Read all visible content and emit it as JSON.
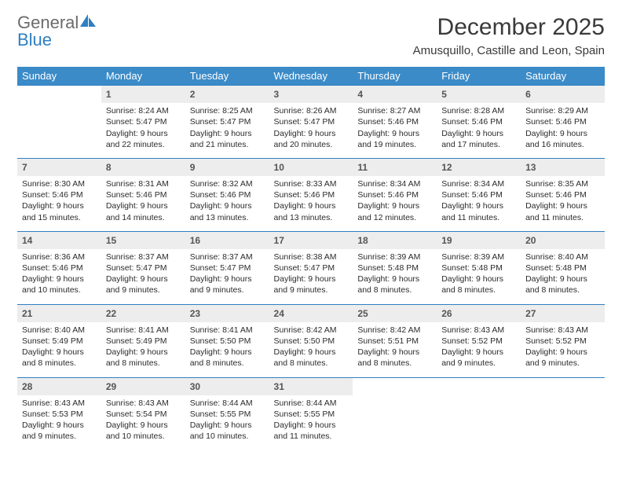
{
  "brand": {
    "name_gray": "General",
    "name_blue": "Blue"
  },
  "header": {
    "title": "December 2025",
    "location": "Amusquillo, Castille and Leon, Spain"
  },
  "colors": {
    "header_bg": "#3b8bc8",
    "header_text": "#ffffff",
    "daynum_bg": "#ededed",
    "rule": "#2f7fc2",
    "body_text": "#2b2b2b",
    "logo_gray": "#6b6b6b",
    "logo_blue": "#2f7fc2"
  },
  "typography": {
    "title_fontsize": 30,
    "location_fontsize": 15,
    "weekday_fontsize": 13,
    "daynum_fontsize": 12,
    "detail_fontsize": 10.5
  },
  "weekdays": [
    "Sunday",
    "Monday",
    "Tuesday",
    "Wednesday",
    "Thursday",
    "Friday",
    "Saturday"
  ],
  "weeks": [
    [
      null,
      {
        "n": "1",
        "sr": "Sunrise: 8:24 AM",
        "ss": "Sunset: 5:47 PM",
        "dl": "Daylight: 9 hours and 22 minutes."
      },
      {
        "n": "2",
        "sr": "Sunrise: 8:25 AM",
        "ss": "Sunset: 5:47 PM",
        "dl": "Daylight: 9 hours and 21 minutes."
      },
      {
        "n": "3",
        "sr": "Sunrise: 8:26 AM",
        "ss": "Sunset: 5:47 PM",
        "dl": "Daylight: 9 hours and 20 minutes."
      },
      {
        "n": "4",
        "sr": "Sunrise: 8:27 AM",
        "ss": "Sunset: 5:46 PM",
        "dl": "Daylight: 9 hours and 19 minutes."
      },
      {
        "n": "5",
        "sr": "Sunrise: 8:28 AM",
        "ss": "Sunset: 5:46 PM",
        "dl": "Daylight: 9 hours and 17 minutes."
      },
      {
        "n": "6",
        "sr": "Sunrise: 8:29 AM",
        "ss": "Sunset: 5:46 PM",
        "dl": "Daylight: 9 hours and 16 minutes."
      }
    ],
    [
      {
        "n": "7",
        "sr": "Sunrise: 8:30 AM",
        "ss": "Sunset: 5:46 PM",
        "dl": "Daylight: 9 hours and 15 minutes."
      },
      {
        "n": "8",
        "sr": "Sunrise: 8:31 AM",
        "ss": "Sunset: 5:46 PM",
        "dl": "Daylight: 9 hours and 14 minutes."
      },
      {
        "n": "9",
        "sr": "Sunrise: 8:32 AM",
        "ss": "Sunset: 5:46 PM",
        "dl": "Daylight: 9 hours and 13 minutes."
      },
      {
        "n": "10",
        "sr": "Sunrise: 8:33 AM",
        "ss": "Sunset: 5:46 PM",
        "dl": "Daylight: 9 hours and 13 minutes."
      },
      {
        "n": "11",
        "sr": "Sunrise: 8:34 AM",
        "ss": "Sunset: 5:46 PM",
        "dl": "Daylight: 9 hours and 12 minutes."
      },
      {
        "n": "12",
        "sr": "Sunrise: 8:34 AM",
        "ss": "Sunset: 5:46 PM",
        "dl": "Daylight: 9 hours and 11 minutes."
      },
      {
        "n": "13",
        "sr": "Sunrise: 8:35 AM",
        "ss": "Sunset: 5:46 PM",
        "dl": "Daylight: 9 hours and 11 minutes."
      }
    ],
    [
      {
        "n": "14",
        "sr": "Sunrise: 8:36 AM",
        "ss": "Sunset: 5:46 PM",
        "dl": "Daylight: 9 hours and 10 minutes."
      },
      {
        "n": "15",
        "sr": "Sunrise: 8:37 AM",
        "ss": "Sunset: 5:47 PM",
        "dl": "Daylight: 9 hours and 9 minutes."
      },
      {
        "n": "16",
        "sr": "Sunrise: 8:37 AM",
        "ss": "Sunset: 5:47 PM",
        "dl": "Daylight: 9 hours and 9 minutes."
      },
      {
        "n": "17",
        "sr": "Sunrise: 8:38 AM",
        "ss": "Sunset: 5:47 PM",
        "dl": "Daylight: 9 hours and 9 minutes."
      },
      {
        "n": "18",
        "sr": "Sunrise: 8:39 AM",
        "ss": "Sunset: 5:48 PM",
        "dl": "Daylight: 9 hours and 8 minutes."
      },
      {
        "n": "19",
        "sr": "Sunrise: 8:39 AM",
        "ss": "Sunset: 5:48 PM",
        "dl": "Daylight: 9 hours and 8 minutes."
      },
      {
        "n": "20",
        "sr": "Sunrise: 8:40 AM",
        "ss": "Sunset: 5:48 PM",
        "dl": "Daylight: 9 hours and 8 minutes."
      }
    ],
    [
      {
        "n": "21",
        "sr": "Sunrise: 8:40 AM",
        "ss": "Sunset: 5:49 PM",
        "dl": "Daylight: 9 hours and 8 minutes."
      },
      {
        "n": "22",
        "sr": "Sunrise: 8:41 AM",
        "ss": "Sunset: 5:49 PM",
        "dl": "Daylight: 9 hours and 8 minutes."
      },
      {
        "n": "23",
        "sr": "Sunrise: 8:41 AM",
        "ss": "Sunset: 5:50 PM",
        "dl": "Daylight: 9 hours and 8 minutes."
      },
      {
        "n": "24",
        "sr": "Sunrise: 8:42 AM",
        "ss": "Sunset: 5:50 PM",
        "dl": "Daylight: 9 hours and 8 minutes."
      },
      {
        "n": "25",
        "sr": "Sunrise: 8:42 AM",
        "ss": "Sunset: 5:51 PM",
        "dl": "Daylight: 9 hours and 8 minutes."
      },
      {
        "n": "26",
        "sr": "Sunrise: 8:43 AM",
        "ss": "Sunset: 5:52 PM",
        "dl": "Daylight: 9 hours and 9 minutes."
      },
      {
        "n": "27",
        "sr": "Sunrise: 8:43 AM",
        "ss": "Sunset: 5:52 PM",
        "dl": "Daylight: 9 hours and 9 minutes."
      }
    ],
    [
      {
        "n": "28",
        "sr": "Sunrise: 8:43 AM",
        "ss": "Sunset: 5:53 PM",
        "dl": "Daylight: 9 hours and 9 minutes."
      },
      {
        "n": "29",
        "sr": "Sunrise: 8:43 AM",
        "ss": "Sunset: 5:54 PM",
        "dl": "Daylight: 9 hours and 10 minutes."
      },
      {
        "n": "30",
        "sr": "Sunrise: 8:44 AM",
        "ss": "Sunset: 5:55 PM",
        "dl": "Daylight: 9 hours and 10 minutes."
      },
      {
        "n": "31",
        "sr": "Sunrise: 8:44 AM",
        "ss": "Sunset: 5:55 PM",
        "dl": "Daylight: 9 hours and 11 minutes."
      },
      null,
      null,
      null
    ]
  ]
}
